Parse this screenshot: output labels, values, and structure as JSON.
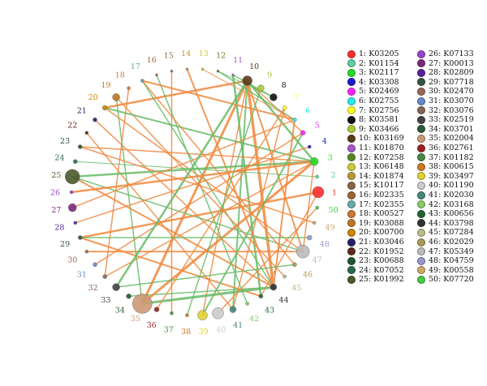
{
  "nodes": [
    {
      "id": 1,
      "label": "1",
      "name": "K03205",
      "color": "#ff2e2e",
      "size": 7.0
    },
    {
      "id": 2,
      "label": "2",
      "name": "K01154",
      "color": "#5ed0a0",
      "size": 2.0
    },
    {
      "id": 3,
      "label": "3",
      "name": "K02117",
      "color": "#22dd22",
      "size": 5.0
    },
    {
      "id": 4,
      "label": "4",
      "name": "K03308",
      "color": "#1b1bcc",
      "size": 2.0
    },
    {
      "id": 5,
      "label": "5",
      "name": "K02469",
      "color": "#ff22ff",
      "size": 3.0
    },
    {
      "id": 6,
      "label": "6",
      "name": "K02755",
      "color": "#22eeee",
      "size": 2.5
    },
    {
      "id": 7,
      "label": "7",
      "name": "K02756",
      "color": "#ffff22",
      "size": 2.5
    },
    {
      "id": 8,
      "label": "8",
      "name": "K03581",
      "color": "#111111",
      "size": 4.5
    },
    {
      "id": 9,
      "label": "9",
      "name": "K03466",
      "color": "#a6cc33",
      "size": 4.0
    },
    {
      "id": 10,
      "label": "10",
      "name": "K03169",
      "color": "#5b3a1a",
      "size": 6.0
    },
    {
      "id": 11,
      "label": "11",
      "name": "K01870",
      "color": "#aa55cc",
      "size": 1.5
    },
    {
      "id": 12,
      "label": "12",
      "name": "K07258",
      "color": "#558822",
      "size": 1.5
    },
    {
      "id": 13,
      "label": "13",
      "name": "K06148",
      "color": "#cccc33",
      "size": 1.5
    },
    {
      "id": 14,
      "label": "14",
      "name": "K01874",
      "color": "#bb9933",
      "size": 1.5
    },
    {
      "id": 15,
      "label": "15",
      "name": "K10117",
      "color": "#886644",
      "size": 1.5
    },
    {
      "id": 16,
      "label": "16",
      "name": "K02335",
      "color": "#996633",
      "size": 1.5
    },
    {
      "id": 17,
      "label": "17",
      "name": "K02355",
      "color": "#66aaaa",
      "size": 2.0
    },
    {
      "id": 18,
      "label": "18",
      "name": "K00527",
      "color": "#cc7733",
      "size": 2.0
    },
    {
      "id": 19,
      "label": "19",
      "name": "K03088",
      "color": "#bb7722",
      "size": 4.5
    },
    {
      "id": 20,
      "label": "20",
      "name": "K00700",
      "color": "#cc8800",
      "size": 3.0
    },
    {
      "id": 21,
      "label": "21",
      "name": "K03046",
      "color": "#222266",
      "size": 2.5
    },
    {
      "id": 22,
      "label": "22",
      "name": "K01952",
      "color": "#5a2a1a",
      "size": 2.0
    },
    {
      "id": 23,
      "label": "23",
      "name": "K00688",
      "color": "#225533",
      "size": 2.5
    },
    {
      "id": 24,
      "label": "24",
      "name": "K07052",
      "color": "#2a6a4a",
      "size": 2.5
    },
    {
      "id": 25,
      "label": "25",
      "name": "K01992",
      "color": "#4a5a2a",
      "size": 9.0
    },
    {
      "id": 26,
      "label": "26",
      "name": "K07133",
      "color": "#9944cc",
      "size": 2.0
    },
    {
      "id": 27,
      "label": "27",
      "name": "K00013",
      "color": "#7a2a7a",
      "size": 5.0
    },
    {
      "id": 28,
      "label": "28",
      "name": "K02809",
      "color": "#552299",
      "size": 2.0
    },
    {
      "id": 29,
      "label": "29",
      "name": "K07718",
      "color": "#335544",
      "size": 2.5
    },
    {
      "id": 30,
      "label": "30",
      "name": "K02470",
      "color": "#996655",
      "size": 2.0
    },
    {
      "id": 31,
      "label": "31",
      "name": "K03070",
      "color": "#6688cc",
      "size": 2.5
    },
    {
      "id": 32,
      "label": "32",
      "name": "K03076",
      "color": "#886655",
      "size": 2.5
    },
    {
      "id": 33,
      "label": "33",
      "name": "K02519",
      "color": "#444444",
      "size": 4.5
    },
    {
      "id": 34,
      "label": "34",
      "name": "K03701",
      "color": "#2a5a3a",
      "size": 3.0
    },
    {
      "id": 35,
      "label": "35",
      "name": "K02004",
      "color": "#cc9977",
      "size": 12.0
    },
    {
      "id": 36,
      "label": "36",
      "name": "K02761",
      "color": "#992222",
      "size": 3.0
    },
    {
      "id": 37,
      "label": "37",
      "name": "K01182",
      "color": "#448844",
      "size": 2.0
    },
    {
      "id": 38,
      "label": "38",
      "name": "K00615",
      "color": "#cc7722",
      "size": 2.0
    },
    {
      "id": 39,
      "label": "39",
      "name": "K03497",
      "color": "#e0d033",
      "size": 6.0
    },
    {
      "id": 40,
      "label": "40",
      "name": "K01190",
      "color": "#cccccc",
      "size": 7.0
    },
    {
      "id": 41,
      "label": "41",
      "name": "K02030",
      "color": "#448877",
      "size": 4.0
    },
    {
      "id": 42,
      "label": "42",
      "name": "K03168",
      "color": "#88cc66",
      "size": 2.0
    },
    {
      "id": 43,
      "label": "43",
      "name": "K00656",
      "color": "#226633",
      "size": 2.5
    },
    {
      "id": 44,
      "label": "44",
      "name": "K03798",
      "color": "#333333",
      "size": 4.0
    },
    {
      "id": 45,
      "label": "45",
      "name": "K07284",
      "color": "#bbbb88",
      "size": 2.0
    },
    {
      "id": 46,
      "label": "46",
      "name": "K02029",
      "color": "#aa9955",
      "size": 2.5
    },
    {
      "id": 47,
      "label": "47",
      "name": "K05349",
      "color": "#bbbbbb",
      "size": 8.0
    },
    {
      "id": 48,
      "label": "48",
      "name": "K04759",
      "color": "#9999cc",
      "size": 3.0
    },
    {
      "id": 49,
      "label": "49",
      "name": "K00558",
      "color": "#ccaa66",
      "size": 2.0
    },
    {
      "id": 50,
      "label": "50",
      "name": "K07720",
      "color": "#44cc44",
      "size": 2.0
    }
  ],
  "edges": [
    {
      "a": 10,
      "b": 44,
      "type": "positive",
      "w": 3.5
    },
    {
      "a": 10,
      "b": 35,
      "type": "positive",
      "w": 3.0
    },
    {
      "a": 10,
      "b": 20,
      "type": "positive",
      "w": 2.5
    },
    {
      "a": 10,
      "b": 5,
      "type": "positive",
      "w": 1.5
    },
    {
      "a": 10,
      "b": 47,
      "type": "positive",
      "w": 2.0
    },
    {
      "a": 10,
      "b": 3,
      "type": "negative",
      "w": 2.5
    },
    {
      "a": 10,
      "b": 41,
      "type": "negative",
      "w": 2.0
    },
    {
      "a": 10,
      "b": 39,
      "type": "positive",
      "w": 1.5
    },
    {
      "a": 11,
      "b": 43,
      "type": "negative",
      "w": 2.5
    },
    {
      "a": 11,
      "b": 8,
      "type": "negative",
      "w": 1.5
    },
    {
      "a": 12,
      "b": 6,
      "type": "negative",
      "w": 1.5
    },
    {
      "a": 12,
      "b": 8,
      "type": "negative",
      "w": 1.0
    },
    {
      "a": 13,
      "b": 6,
      "type": "positive",
      "w": 1.0
    },
    {
      "a": 14,
      "b": 44,
      "type": "positive",
      "w": 2.0
    },
    {
      "a": 15,
      "b": 37,
      "type": "positive",
      "w": 1.5
    },
    {
      "a": 16,
      "b": 42,
      "type": "negative",
      "w": 1.5
    },
    {
      "a": 17,
      "b": 6,
      "type": "positive",
      "w": 2.0
    },
    {
      "a": 17,
      "b": 44,
      "type": "negative",
      "w": 1.5
    },
    {
      "a": 18,
      "b": 32,
      "type": "positive",
      "w": 1.5
    },
    {
      "a": 19,
      "b": 35,
      "type": "negative",
      "w": 1.5
    },
    {
      "a": 19,
      "b": 45,
      "type": "positive",
      "w": 1.5
    },
    {
      "a": 20,
      "b": 3,
      "type": "negative",
      "w": 2.0
    },
    {
      "a": 20,
      "b": 47,
      "type": "positive",
      "w": 1.5
    },
    {
      "a": 21,
      "b": 44,
      "type": "positive",
      "w": 1.5
    },
    {
      "a": 22,
      "b": 41,
      "type": "positive",
      "w": 1.5
    },
    {
      "a": 23,
      "b": 3,
      "type": "positive",
      "w": 1.5
    },
    {
      "a": 24,
      "b": 2,
      "type": "negative",
      "w": 1.0
    },
    {
      "a": 25,
      "b": 3,
      "type": "negative",
      "w": 2.5
    },
    {
      "a": 25,
      "b": 44,
      "type": "positive",
      "w": 2.0
    },
    {
      "a": 25,
      "b": 47,
      "type": "negative",
      "w": 1.5
    },
    {
      "a": 26,
      "b": 3,
      "type": "positive",
      "w": 2.5
    },
    {
      "a": 27,
      "b": 6,
      "type": "positive",
      "w": 1.5
    },
    {
      "a": 28,
      "b": 4,
      "type": "positive",
      "w": 1.5
    },
    {
      "a": 29,
      "b": 43,
      "type": "positive",
      "w": 2.0
    },
    {
      "a": 29,
      "b": 1,
      "type": "positive",
      "w": 2.5
    },
    {
      "a": 30,
      "b": 47,
      "type": "positive",
      "w": 2.0
    },
    {
      "a": 31,
      "b": 5,
      "type": "positive",
      "w": 1.5
    },
    {
      "a": 32,
      "b": 3,
      "type": "positive",
      "w": 1.5
    },
    {
      "a": 33,
      "b": 10,
      "type": "negative",
      "w": 2.5
    },
    {
      "a": 34,
      "b": 44,
      "type": "negative",
      "w": 1.5
    },
    {
      "a": 35,
      "b": 3,
      "type": "positive",
      "w": 3.0
    },
    {
      "a": 35,
      "b": 44,
      "type": "negative",
      "w": 3.0
    },
    {
      "a": 36,
      "b": 7,
      "type": "positive",
      "w": 1.5
    },
    {
      "a": 38,
      "b": 9,
      "type": "negative",
      "w": 1.5
    },
    {
      "a": 39,
      "b": 5,
      "type": "negative",
      "w": 2.0
    },
    {
      "a": 40,
      "b": 50,
      "type": "positive",
      "w": 1.5
    },
    {
      "a": 43,
      "b": 1,
      "type": "positive",
      "w": 1.5
    },
    {
      "a": 44,
      "b": 6,
      "type": "positive",
      "w": 2.0
    },
    {
      "a": 46,
      "b": 17,
      "type": "positive",
      "w": 1.5
    },
    {
      "a": 47,
      "b": 3,
      "type": "positive",
      "w": 1.5
    },
    {
      "a": 48,
      "b": 29,
      "type": "negative",
      "w": 1.5
    },
    {
      "a": 49,
      "b": 23,
      "type": "positive",
      "w": 1.5
    },
    {
      "a": 33,
      "b": 46,
      "type": "negative",
      "w": 1.5
    },
    {
      "a": 41,
      "b": 7,
      "type": "positive",
      "w": 1.5
    }
  ],
  "edge_colors": {
    "positive": "#f0883e",
    "negative": "#66bb66"
  },
  "label_colors_note_free": true
}
